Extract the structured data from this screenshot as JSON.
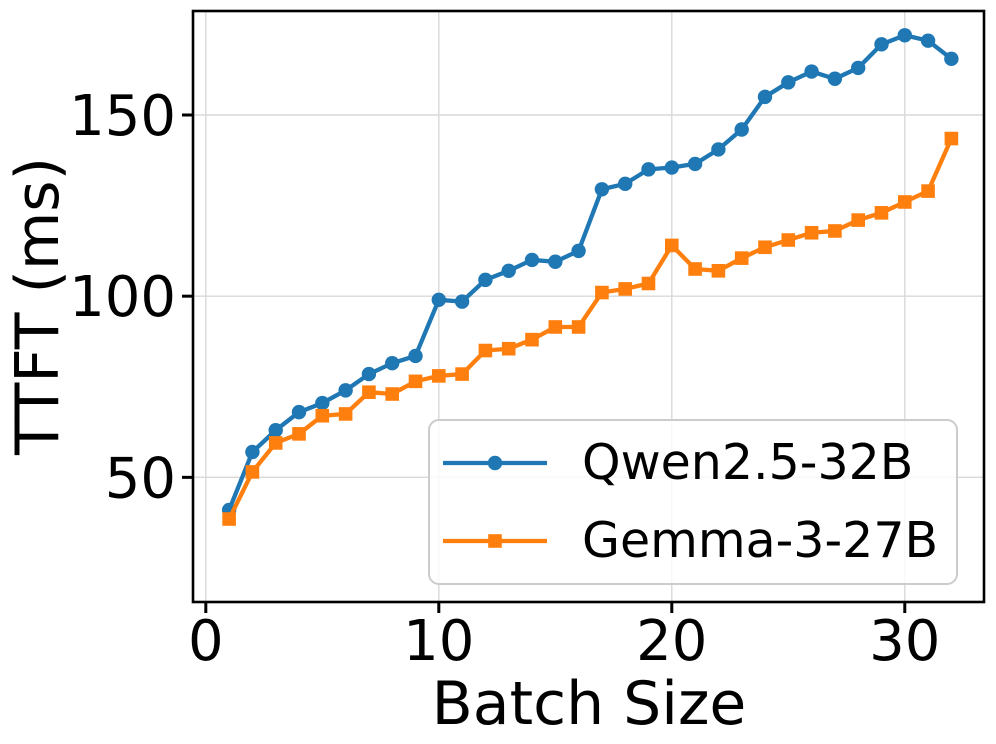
{
  "chart_data": {
    "type": "line",
    "title": "",
    "xlabel": "Batch Size",
    "ylabel": "TTFT (ms)",
    "x": [
      1,
      2,
      3,
      4,
      5,
      6,
      7,
      8,
      9,
      10,
      11,
      12,
      13,
      14,
      15,
      16,
      17,
      18,
      19,
      20,
      21,
      22,
      23,
      24,
      25,
      26,
      27,
      28,
      29,
      30,
      31,
      32
    ],
    "series": [
      {
        "name": "Qwen2.5-32B",
        "color": "#1f77b4",
        "marker": "circle",
        "values": [
          41,
          57,
          63,
          68,
          70.5,
          74,
          78.5,
          81.5,
          83.5,
          99,
          98.5,
          104.5,
          107,
          110,
          109.5,
          112.5,
          129.5,
          131,
          135,
          135.5,
          136.5,
          140.5,
          146,
          155,
          159,
          162,
          160,
          163,
          169.5,
          172,
          170.5,
          165.5
        ]
      },
      {
        "name": "Gemma-3-27B",
        "color": "#ff7f0e",
        "marker": "square",
        "values": [
          38.5,
          51.5,
          59.5,
          62,
          67,
          67.5,
          73.5,
          73,
          76.5,
          78,
          78.5,
          85,
          85.5,
          88,
          91.5,
          91.5,
          101,
          102,
          103.5,
          114,
          107.5,
          107,
          110.5,
          113.5,
          115.5,
          117.5,
          118,
          121,
          123,
          126,
          129,
          143.5
        ]
      }
    ],
    "xticks": {
      "values": [
        0,
        10,
        20,
        30
      ],
      "labels": [
        "0",
        "10",
        "20",
        "30"
      ]
    },
    "yticks": {
      "values": [
        50,
        100,
        150
      ],
      "labels": [
        "50",
        "100",
        "150"
      ]
    },
    "xlim": [
      -0.55,
      33.4
    ],
    "ylim": [
      15.6,
      178.7
    ],
    "grid": true,
    "grid_color": "#d9d9d9",
    "axis_color": "#000000",
    "background_color": "#ffffff",
    "legend": {
      "position": "lower-right-inside"
    }
  }
}
